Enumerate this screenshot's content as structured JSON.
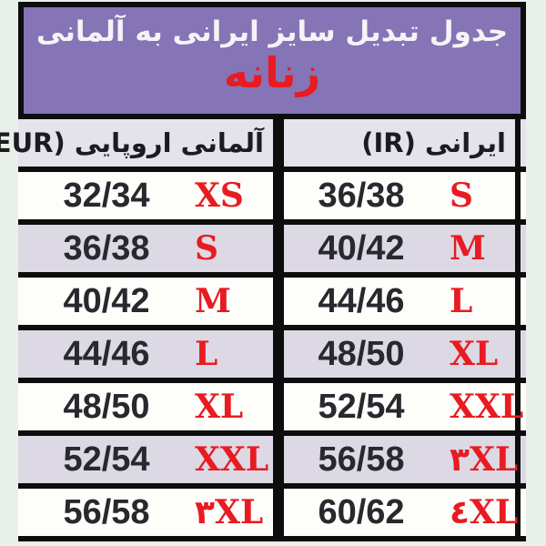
{
  "title_box": {
    "title": "جدول تبدیل سایز ایرانی به آلمانی",
    "subtitle": "زنانه"
  },
  "table": {
    "headers": {
      "eur": "آلمانی اروپایی (EUR)",
      "ir": "ایرانی (IR)"
    },
    "rows": [
      {
        "eur_size": "32/34",
        "eur_label": "XS",
        "ir_size": "36/38",
        "ir_label": "S"
      },
      {
        "eur_size": "36/38",
        "eur_label": "S",
        "ir_size": "40/42",
        "ir_label": "M"
      },
      {
        "eur_size": "40/42",
        "eur_label": "M",
        "ir_size": "44/46",
        "ir_label": "L"
      },
      {
        "eur_size": "44/46",
        "eur_label": "L",
        "ir_size": "48/50",
        "ir_label": "XL"
      },
      {
        "eur_size": "48/50",
        "eur_label": "XL",
        "ir_size": "52/54",
        "ir_label": "XXL"
      },
      {
        "eur_size": "52/54",
        "eur_label": "XXL",
        "ir_size": "56/58",
        "ir_label": "۳XL"
      },
      {
        "eur_size": "56/58",
        "eur_label": "۳XL",
        "ir_size": "60/62",
        "ir_label": "٤XL"
      }
    ]
  },
  "colors": {
    "page_bg": "#e9efe9",
    "title_box_purple": "#8574b6",
    "title_text_white": "#f6f3f6",
    "size_label_red": "#e81b22",
    "header_row_bg": "#e4e2eb",
    "row_white": "#fdfdfa",
    "row_lavender": "#dcd9e4",
    "border_black": "#0d0d0d",
    "number_text": "#28282e"
  }
}
